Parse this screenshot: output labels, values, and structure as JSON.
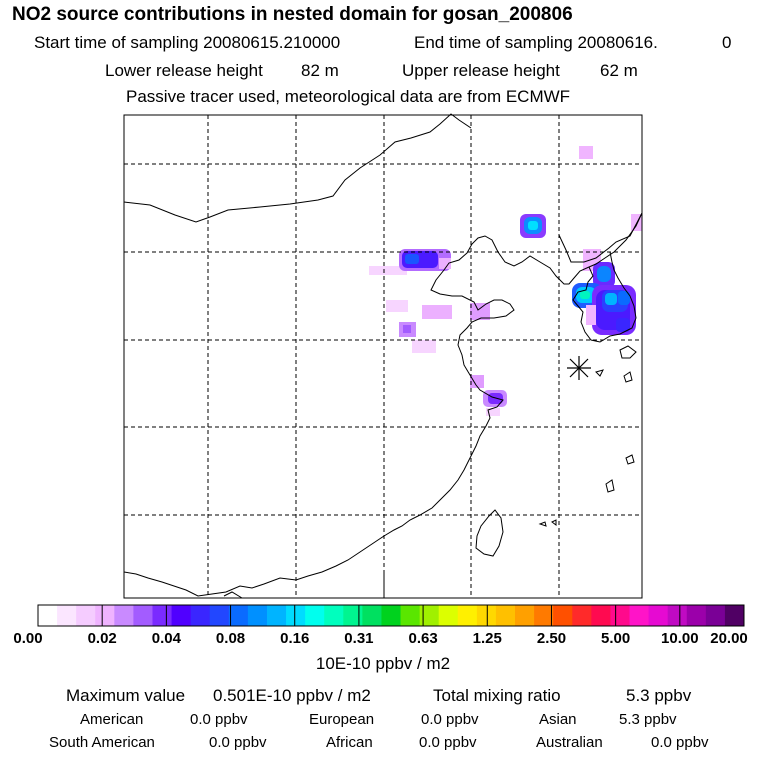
{
  "header": {
    "title": "NO2 source contributions in nested domain for gosan_200806",
    "start_label": "Start time of sampling 20080615.210000",
    "end_label": "End time of sampling 20080616.",
    "end_value": "0",
    "lower_label": "Lower release height",
    "lower_value": "82 m",
    "upper_label": "Upper release height",
    "upper_value": "62 m",
    "note": "Passive tracer used, meteorological data are from ECMWF"
  },
  "chart_data": {
    "type": "heatmap",
    "title": "NO2 source contributions in nested domain for gosan_200806",
    "grid": "dashed lat/lon graticule",
    "receptor_marker": "asterisk (Gosan site)",
    "colorbar": {
      "tick_labels": [
        "0.00",
        "0.02",
        "0.04",
        "0.08",
        "0.16",
        "0.31",
        "0.63",
        "1.25",
        "2.50",
        "5.00",
        "10.00",
        "20.00"
      ],
      "units": "10E-10 ppbv / m2",
      "colors": [
        "#ffffff",
        "#fbe6ff",
        "#f5ccff",
        "#efb3ff",
        "#c98aff",
        "#a35cff",
        "#7a2bff",
        "#5000ff",
        "#3a26ff",
        "#2247ff",
        "#0a6bff",
        "#0090ff",
        "#00b4ff",
        "#00dcff",
        "#00ffee",
        "#00ffbe",
        "#00f590",
        "#00e060",
        "#00d21e",
        "#5ae600",
        "#a0f000",
        "#dcff00",
        "#fff000",
        "#ffd800",
        "#ffc000",
        "#ffa000",
        "#ff7a00",
        "#ff5000",
        "#ff2a2a",
        "#ff0a50",
        "#ff0a8c",
        "#ff14c8",
        "#e60ad2",
        "#c00ac3",
        "#9b00aa",
        "#7a0096",
        "#500064"
      ]
    },
    "stats": {
      "max_label": "Maximum value",
      "max_value": "0.501E-10 ppbv / m2",
      "total_label": "Total mixing ratio",
      "total_value": "5.3 ppbv",
      "regions": [
        {
          "name": "American",
          "value": "0.0 ppbv"
        },
        {
          "name": "European",
          "value": "0.0 ppbv"
        },
        {
          "name": "Asian",
          "value": "5.3 ppbv"
        },
        {
          "name": "South American",
          "value": "0.0 ppbv"
        },
        {
          "name": "African",
          "value": "0.0 ppbv"
        },
        {
          "name": "Australian",
          "value": "0.0 ppbv"
        }
      ]
    }
  }
}
